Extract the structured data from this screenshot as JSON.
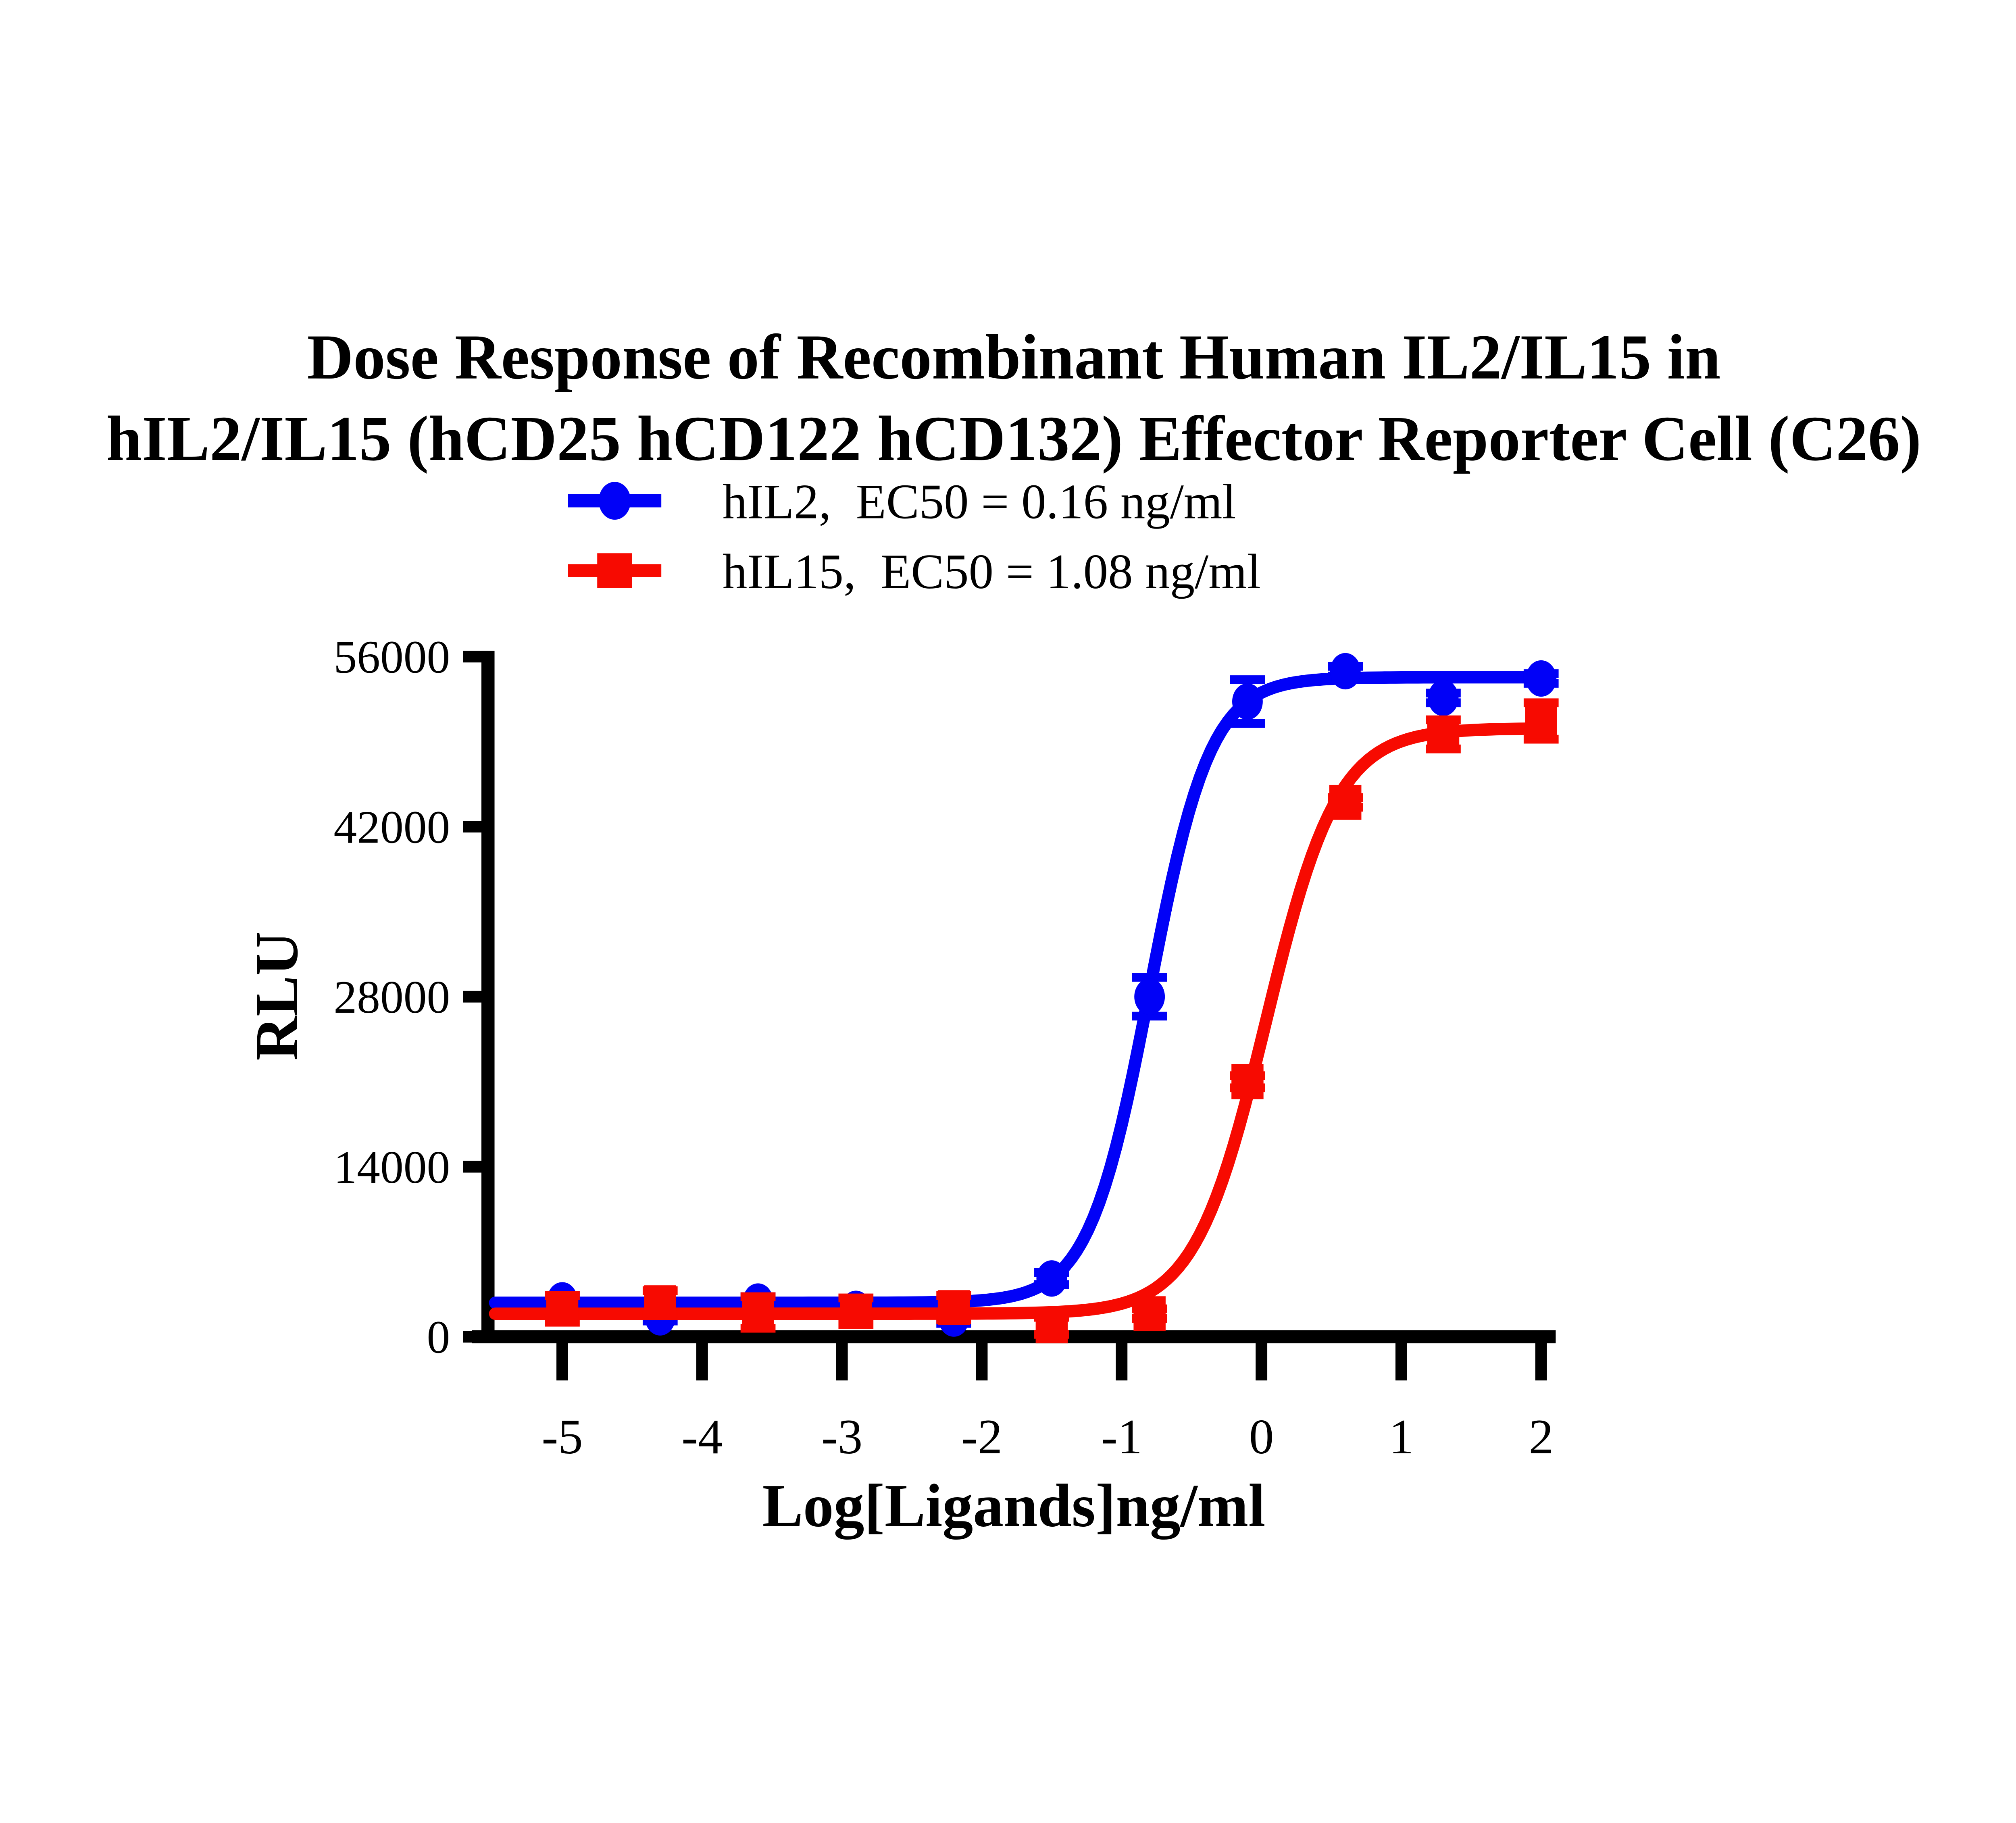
{
  "page": {
    "background": "#FFFFFF"
  },
  "chart_data": {
    "type": "scatter",
    "curve_model": "four-parameter logistic sigmoid fit per series",
    "title_line1": "Dose Response of Recombinant Human IL2/IL15 in",
    "title_line2": "hIL2/IL15 (hCD25 hCD122 hCD132) Effector Reporter Cell (C26)",
    "xlabel": "Log[Ligands]ng/ml",
    "ylabel": "RLU",
    "x_ticks": [
      -5,
      -4,
      -3,
      -2,
      -1,
      0,
      1,
      2
    ],
    "y_ticks": [
      0,
      14000,
      28000,
      42000,
      56000
    ],
    "xlim": [
      -5.48,
      2.1
    ],
    "ylim": [
      0,
      56000
    ],
    "grid": false,
    "legend_position": "above plot, left-of-center",
    "axis_color": "#000000",
    "series": [
      {
        "name": "hIL2",
        "legend": "hIL2,  EC50 = 0.16 ng/ml",
        "color": "#0101F7",
        "marker": "circle",
        "ec50_ng_ml": 0.16,
        "fit": {
          "bottom": 2800,
          "top": 54300,
          "logEC50": -0.8,
          "hill": 2.0
        },
        "x": [
          -5.0,
          -4.3,
          -3.6,
          -2.9,
          -2.2,
          -1.5,
          -0.8,
          -0.1,
          0.6,
          1.3,
          2.0
        ],
        "y": [
          3000,
          1600,
          2900,
          2300,
          1500,
          4800,
          28000,
          52300,
          54800,
          52600,
          54200
        ],
        "err": [
          400,
          300,
          400,
          300,
          400,
          500,
          1600,
          1800,
          400,
          400,
          400
        ]
      },
      {
        "name": "hIL15",
        "legend": "hIL15,  EC50 = 1.08 ng/ml",
        "color": "#F70A01",
        "marker": "square",
        "ec50_ng_ml": 1.08,
        "fit": {
          "bottom": 1900,
          "top": 50100,
          "logEC50": 0.033,
          "hill": 1.7
        },
        "x": [
          -5.0,
          -4.3,
          -3.6,
          -2.9,
          -2.2,
          -1.5,
          -0.8,
          -0.1,
          0.6,
          1.3,
          2.0
        ],
        "y": [
          2300,
          2800,
          2000,
          2100,
          2400,
          900,
          1900,
          21000,
          44000,
          49600,
          50700
        ],
        "err": [
          1100,
          1000,
          1300,
          1100,
          1000,
          700,
          400,
          500,
          400,
          1200,
          1500
        ]
      }
    ]
  }
}
